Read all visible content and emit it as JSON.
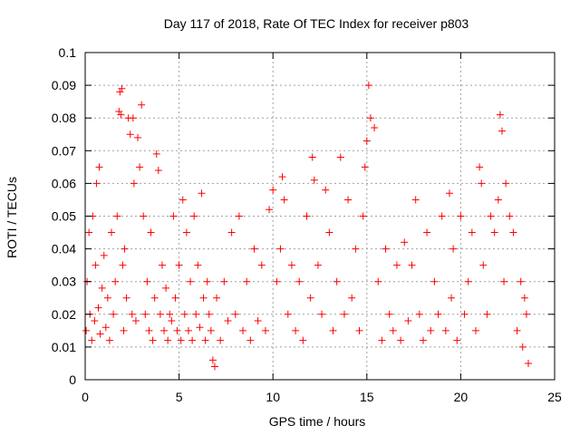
{
  "chart_data": {
    "type": "scatter",
    "title": "Day 117 of 2018, Rate Of TEC Index for receiver p803",
    "xlabel": "GPS time / hours",
    "ylabel": "ROTI / TECUs",
    "xlim": [
      0,
      25
    ],
    "ylim": [
      0,
      0.1
    ],
    "x_ticks": [
      "0",
      "5",
      "10",
      "15",
      "20",
      "25"
    ],
    "y_ticks": [
      "0",
      "0.01",
      "0.02",
      "0.03",
      "0.04",
      "0.05",
      "0.06",
      "0.07",
      "0.08",
      "0.09",
      "0.1"
    ],
    "grid": true,
    "marker": "+",
    "color": "#ff0000",
    "series": [
      {
        "x": [
          0.05,
          0.1,
          0.2,
          0.25,
          0.35,
          0.4,
          0.5,
          0.55,
          0.6,
          0.7,
          0.75,
          0.8,
          0.9,
          1.0,
          1.1,
          1.2,
          1.3,
          1.4,
          1.5,
          1.6,
          1.7,
          1.8,
          1.85,
          1.9,
          1.95,
          2.0,
          2.05,
          2.1,
          2.2,
          2.3,
          2.4,
          2.5,
          2.55,
          2.6,
          2.7,
          2.8,
          2.9,
          3.0,
          3.1,
          3.2,
          3.3,
          3.4,
          3.5,
          3.6,
          3.7,
          3.8,
          3.9,
          4.0,
          4.1,
          4.2,
          4.3,
          4.4,
          4.5,
          4.6,
          4.7,
          4.8,
          4.9,
          5.0,
          5.1,
          5.2,
          5.3,
          5.4,
          5.5,
          5.6,
          5.7,
          5.8,
          5.9,
          6.0,
          6.1,
          6.2,
          6.3,
          6.4,
          6.5,
          6.6,
          6.7,
          6.8,
          6.9,
          7.0,
          7.2,
          7.4,
          7.6,
          7.8,
          8.0,
          8.2,
          8.4,
          8.6,
          8.8,
          9.0,
          9.2,
          9.4,
          9.6,
          9.8,
          10.0,
          10.2,
          10.4,
          10.5,
          10.6,
          10.8,
          11.0,
          11.2,
          11.4,
          11.6,
          11.8,
          12.0,
          12.1,
          12.2,
          12.4,
          12.6,
          12.8,
          13.0,
          13.2,
          13.4,
          13.6,
          13.8,
          14.0,
          14.2,
          14.4,
          14.6,
          14.8,
          14.9,
          15.0,
          15.1,
          15.2,
          15.4,
          15.6,
          15.8,
          16.0,
          16.2,
          16.4,
          16.6,
          16.8,
          17.0,
          17.2,
          17.4,
          17.6,
          17.8,
          18.0,
          18.2,
          18.4,
          18.6,
          18.8,
          19.0,
          19.2,
          19.4,
          19.5,
          19.6,
          19.8,
          20.0,
          20.2,
          20.4,
          20.6,
          20.8,
          21.0,
          21.1,
          21.2,
          21.4,
          21.6,
          21.8,
          22.0,
          22.1,
          22.2,
          22.3,
          22.4,
          22.6,
          22.8,
          23.0,
          23.2,
          23.3,
          23.4,
          23.5,
          23.6
        ],
        "y": [
          0.015,
          0.03,
          0.045,
          0.02,
          0.012,
          0.05,
          0.018,
          0.035,
          0.06,
          0.022,
          0.065,
          0.014,
          0.028,
          0.038,
          0.016,
          0.025,
          0.012,
          0.045,
          0.02,
          0.03,
          0.05,
          0.082,
          0.088,
          0.081,
          0.089,
          0.035,
          0.015,
          0.04,
          0.025,
          0.08,
          0.075,
          0.02,
          0.08,
          0.06,
          0.018,
          0.074,
          0.065,
          0.084,
          0.05,
          0.02,
          0.03,
          0.015,
          0.045,
          0.012,
          0.025,
          0.069,
          0.064,
          0.02,
          0.035,
          0.015,
          0.028,
          0.012,
          0.02,
          0.018,
          0.05,
          0.025,
          0.015,
          0.035,
          0.012,
          0.055,
          0.02,
          0.045,
          0.015,
          0.03,
          0.012,
          0.05,
          0.02,
          0.035,
          0.016,
          0.057,
          0.025,
          0.012,
          0.03,
          0.02,
          0.015,
          0.006,
          0.004,
          0.025,
          0.012,
          0.03,
          0.018,
          0.045,
          0.02,
          0.05,
          0.015,
          0.03,
          0.012,
          0.04,
          0.018,
          0.035,
          0.015,
          0.052,
          0.058,
          0.03,
          0.04,
          0.062,
          0.055,
          0.02,
          0.035,
          0.015,
          0.03,
          0.012,
          0.05,
          0.025,
          0.068,
          0.061,
          0.035,
          0.02,
          0.058,
          0.045,
          0.015,
          0.03,
          0.068,
          0.02,
          0.055,
          0.025,
          0.04,
          0.015,
          0.05,
          0.065,
          0.073,
          0.09,
          0.08,
          0.077,
          0.03,
          0.012,
          0.04,
          0.02,
          0.015,
          0.035,
          0.012,
          0.042,
          0.018,
          0.035,
          0.055,
          0.02,
          0.012,
          0.045,
          0.015,
          0.03,
          0.02,
          0.05,
          0.015,
          0.057,
          0.025,
          0.04,
          0.012,
          0.05,
          0.02,
          0.03,
          0.045,
          0.015,
          0.065,
          0.06,
          0.035,
          0.02,
          0.05,
          0.045,
          0.055,
          0.081,
          0.076,
          0.03,
          0.06,
          0.05,
          0.045,
          0.015,
          0.03,
          0.01,
          0.025,
          0.02,
          0.005
        ]
      }
    ]
  }
}
